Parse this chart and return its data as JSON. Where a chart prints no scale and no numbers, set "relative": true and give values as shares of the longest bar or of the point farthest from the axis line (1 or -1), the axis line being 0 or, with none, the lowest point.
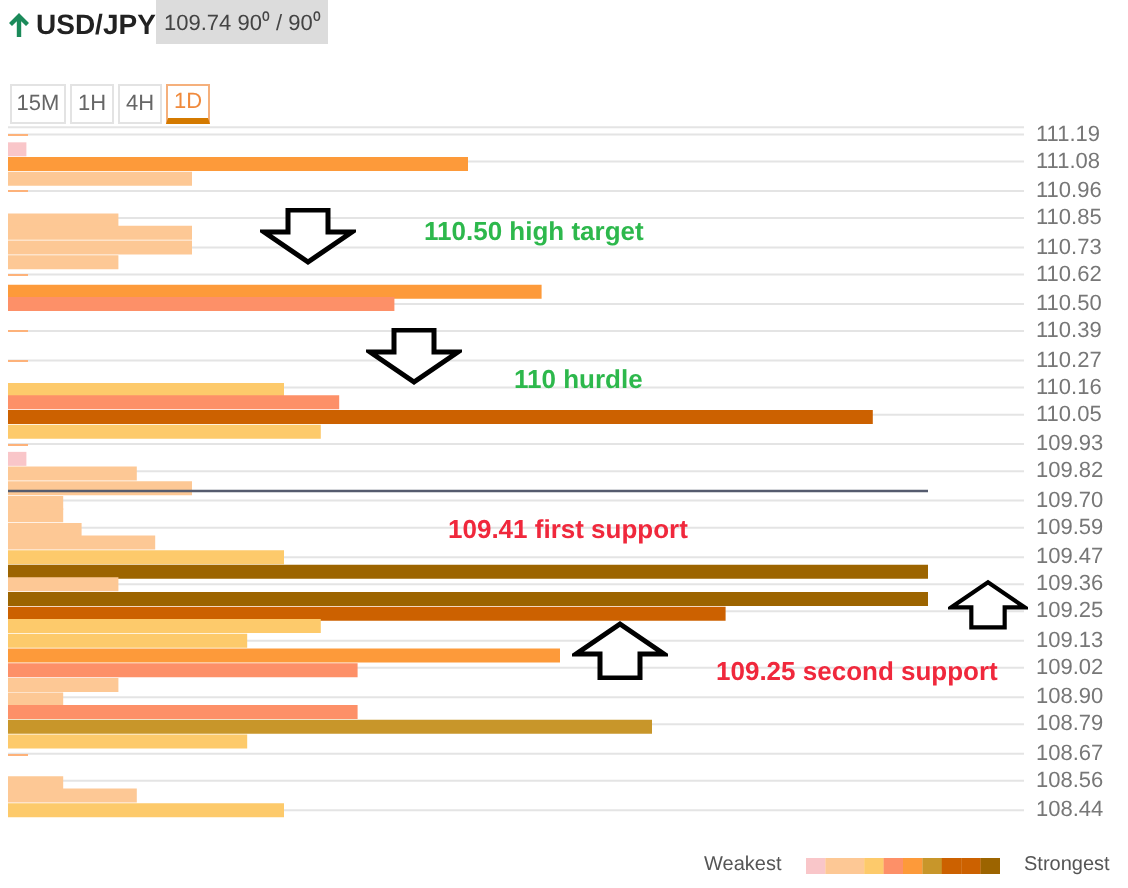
{
  "chart_data": {
    "type": "bar",
    "orientation": "horizontal",
    "relative": true,
    "title": "USD/JPY",
    "subtitle": "109.74 90⁰ / 90⁰",
    "annotations": [
      "15M",
      "1H",
      "4H",
      "1D",
      "110.50 high target",
      "110 hurdle",
      "109.41 first support",
      "109.25 second support",
      "Weakest",
      "Strongest"
    ],
    "x": [
      111.13,
      111.07,
      111.01,
      110.84,
      110.79,
      110.73,
      110.67,
      110.55,
      110.5,
      110.15,
      110.1,
      110.04,
      109.98,
      109.87,
      109.81,
      109.75,
      109.69,
      109.64,
      109.58,
      109.53,
      109.47,
      109.41,
      109.36,
      109.3,
      109.24,
      109.19,
      109.13,
      109.07,
      109.01,
      108.95,
      108.89,
      108.84,
      108.78,
      108.72,
      108.55,
      108.5,
      108.44
    ],
    "values": [
      0.02,
      0.5,
      0.2,
      0.12,
      0.2,
      0.2,
      0.12,
      0.58,
      0.42,
      0.3,
      0.36,
      0.94,
      0.34,
      0.02,
      0.14,
      0.2,
      0.06,
      0.06,
      0.08,
      0.16,
      0.3,
      1,
      0.12,
      1,
      0.78,
      0.34,
      0.26,
      0.6,
      0.38,
      0.12,
      0.06,
      0.38,
      0.7,
      0.26,
      0.06,
      0.14,
      0.3
    ],
    "colors": [
      "#f9c6c9",
      "#fd9a3a",
      "#fdc895",
      "#fdc895",
      "#fdc895",
      "#fdc895",
      "#fdc895",
      "#fd9a3a",
      "#fd9068",
      "#fdca6b",
      "#fd9068",
      "#cc6100",
      "#fdca6b",
      "#f9c6c9",
      "#fdc895",
      "#fdc895",
      "#fdc895",
      "#fdc895",
      "#fdc895",
      "#fdc895",
      "#fdca6b",
      "#9c6400",
      "#fdc895",
      "#9c6400",
      "#cc6100",
      "#fdca6b",
      "#fdca6b",
      "#fd9a3a",
      "#fd9068",
      "#fdc895",
      "#fdc895",
      "#fd9068",
      "#c8962a",
      "#fdca6b",
      "#fdc895",
      "#fdc895",
      "#fdca6b"
    ],
    "ylim": [
      108.4,
      111.22
    ],
    "yticks": [
      111.19,
      111.08,
      110.96,
      110.85,
      110.73,
      110.62,
      {
        "value": 110.5,
        "label": "110.50"
      },
      110.39,
      110.27,
      110.16,
      110.05,
      109.93,
      109.82,
      {
        "value": 109.7,
        "label": "109.70"
      },
      109.59,
      109.47,
      109.36,
      109.25,
      109.13,
      109.02,
      {
        "value": 108.9,
        "label": "108.90"
      },
      108.79,
      108.67,
      108.56,
      108.44
    ],
    "grid": "y",
    "ref_lines": [
      {
        "axis": "y",
        "value": 109.74,
        "color": "#555b6e"
      }
    ]
  }
}
